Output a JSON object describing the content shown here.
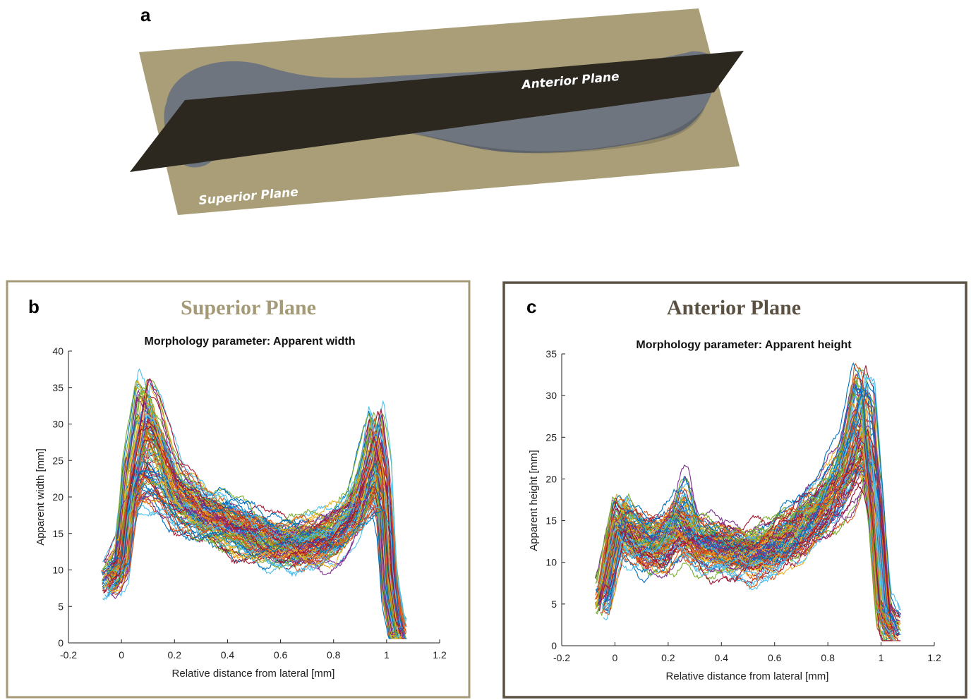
{
  "panel_a": {
    "letter": "a",
    "superior_plane_label": "Superior Plane",
    "anterior_plane_label": "Anterior Plane",
    "superior_plane_color": "#a99e78",
    "anterior_plane_color": "#2c2820",
    "bone_color": "#6f757e"
  },
  "chart_data": [
    {
      "type": "line",
      "panel_letter": "b",
      "panel_title": "Superior Plane",
      "panel_title_color": "#a59a78",
      "border_color": "#a59a78",
      "title": "Morphology parameter: Apparent width",
      "xlabel": "Relative distance from lateral [mm]",
      "ylabel": "Apparent width [mm]",
      "xlim": [
        -0.2,
        1.2
      ],
      "ylim": [
        0,
        40
      ],
      "xticks": [
        -0.2,
        0,
        0.2,
        0.4,
        0.6,
        0.8,
        1,
        1.2
      ],
      "yticks": [
        0,
        5,
        10,
        15,
        20,
        25,
        30,
        35,
        40
      ],
      "grid": false,
      "n_series": 100,
      "x_range_of_curves": [
        -0.05,
        1.05
      ],
      "typical_profile": {
        "x": [
          -0.04,
          0.0,
          0.03,
          0.08,
          0.12,
          0.2,
          0.3,
          0.4,
          0.5,
          0.6,
          0.7,
          0.8,
          0.88,
          0.93,
          0.96,
          0.99,
          1.01,
          1.04
        ],
        "y": [
          9,
          11,
          20,
          27,
          26,
          20,
          17.5,
          16,
          14.5,
          13.5,
          13.5,
          14.5,
          17.5,
          22,
          25,
          20,
          8,
          1.5
        ]
      },
      "curve_min_peak": 19,
      "curve_max_peak": 36.5,
      "series_colors": [
        "#0072bd",
        "#d95319",
        "#edb120",
        "#7e2f8e",
        "#77ac30",
        "#4dbeee",
        "#a2142f"
      ]
    },
    {
      "type": "line",
      "panel_letter": "c",
      "panel_title": "Anterior Plane",
      "panel_title_color": "#5b5142",
      "border_color": "#5b5142",
      "title": "Morphology parameter: Apparent height",
      "xlabel": "Relative distance from lateral [mm]",
      "ylabel": "Apparent height [mm]",
      "xlim": [
        -0.2,
        1.2
      ],
      "ylim": [
        0,
        35
      ],
      "xticks": [
        -0.2,
        0,
        0.2,
        0.4,
        0.6,
        0.8,
        1,
        1.2
      ],
      "yticks": [
        0,
        5,
        10,
        15,
        20,
        25,
        30,
        35
      ],
      "grid": false,
      "n_series": 100,
      "x_range_of_curves": [
        -0.05,
        1.05
      ],
      "typical_profile": {
        "x": [
          -0.04,
          -0.01,
          0.02,
          0.06,
          0.12,
          0.19,
          0.25,
          0.3,
          0.4,
          0.5,
          0.6,
          0.7,
          0.8,
          0.87,
          0.92,
          0.95,
          0.98,
          1.01,
          1.04
        ],
        "y": [
          6,
          11,
          15,
          13.5,
          12,
          12,
          14,
          12,
          11.5,
          11,
          12,
          14,
          17,
          20.5,
          25,
          24,
          16,
          4,
          2
        ]
      },
      "curve_min_peak": 20,
      "curve_max_peak": 34,
      "series_colors": [
        "#0072bd",
        "#d95319",
        "#edb120",
        "#7e2f8e",
        "#77ac30",
        "#4dbeee",
        "#a2142f"
      ]
    }
  ]
}
